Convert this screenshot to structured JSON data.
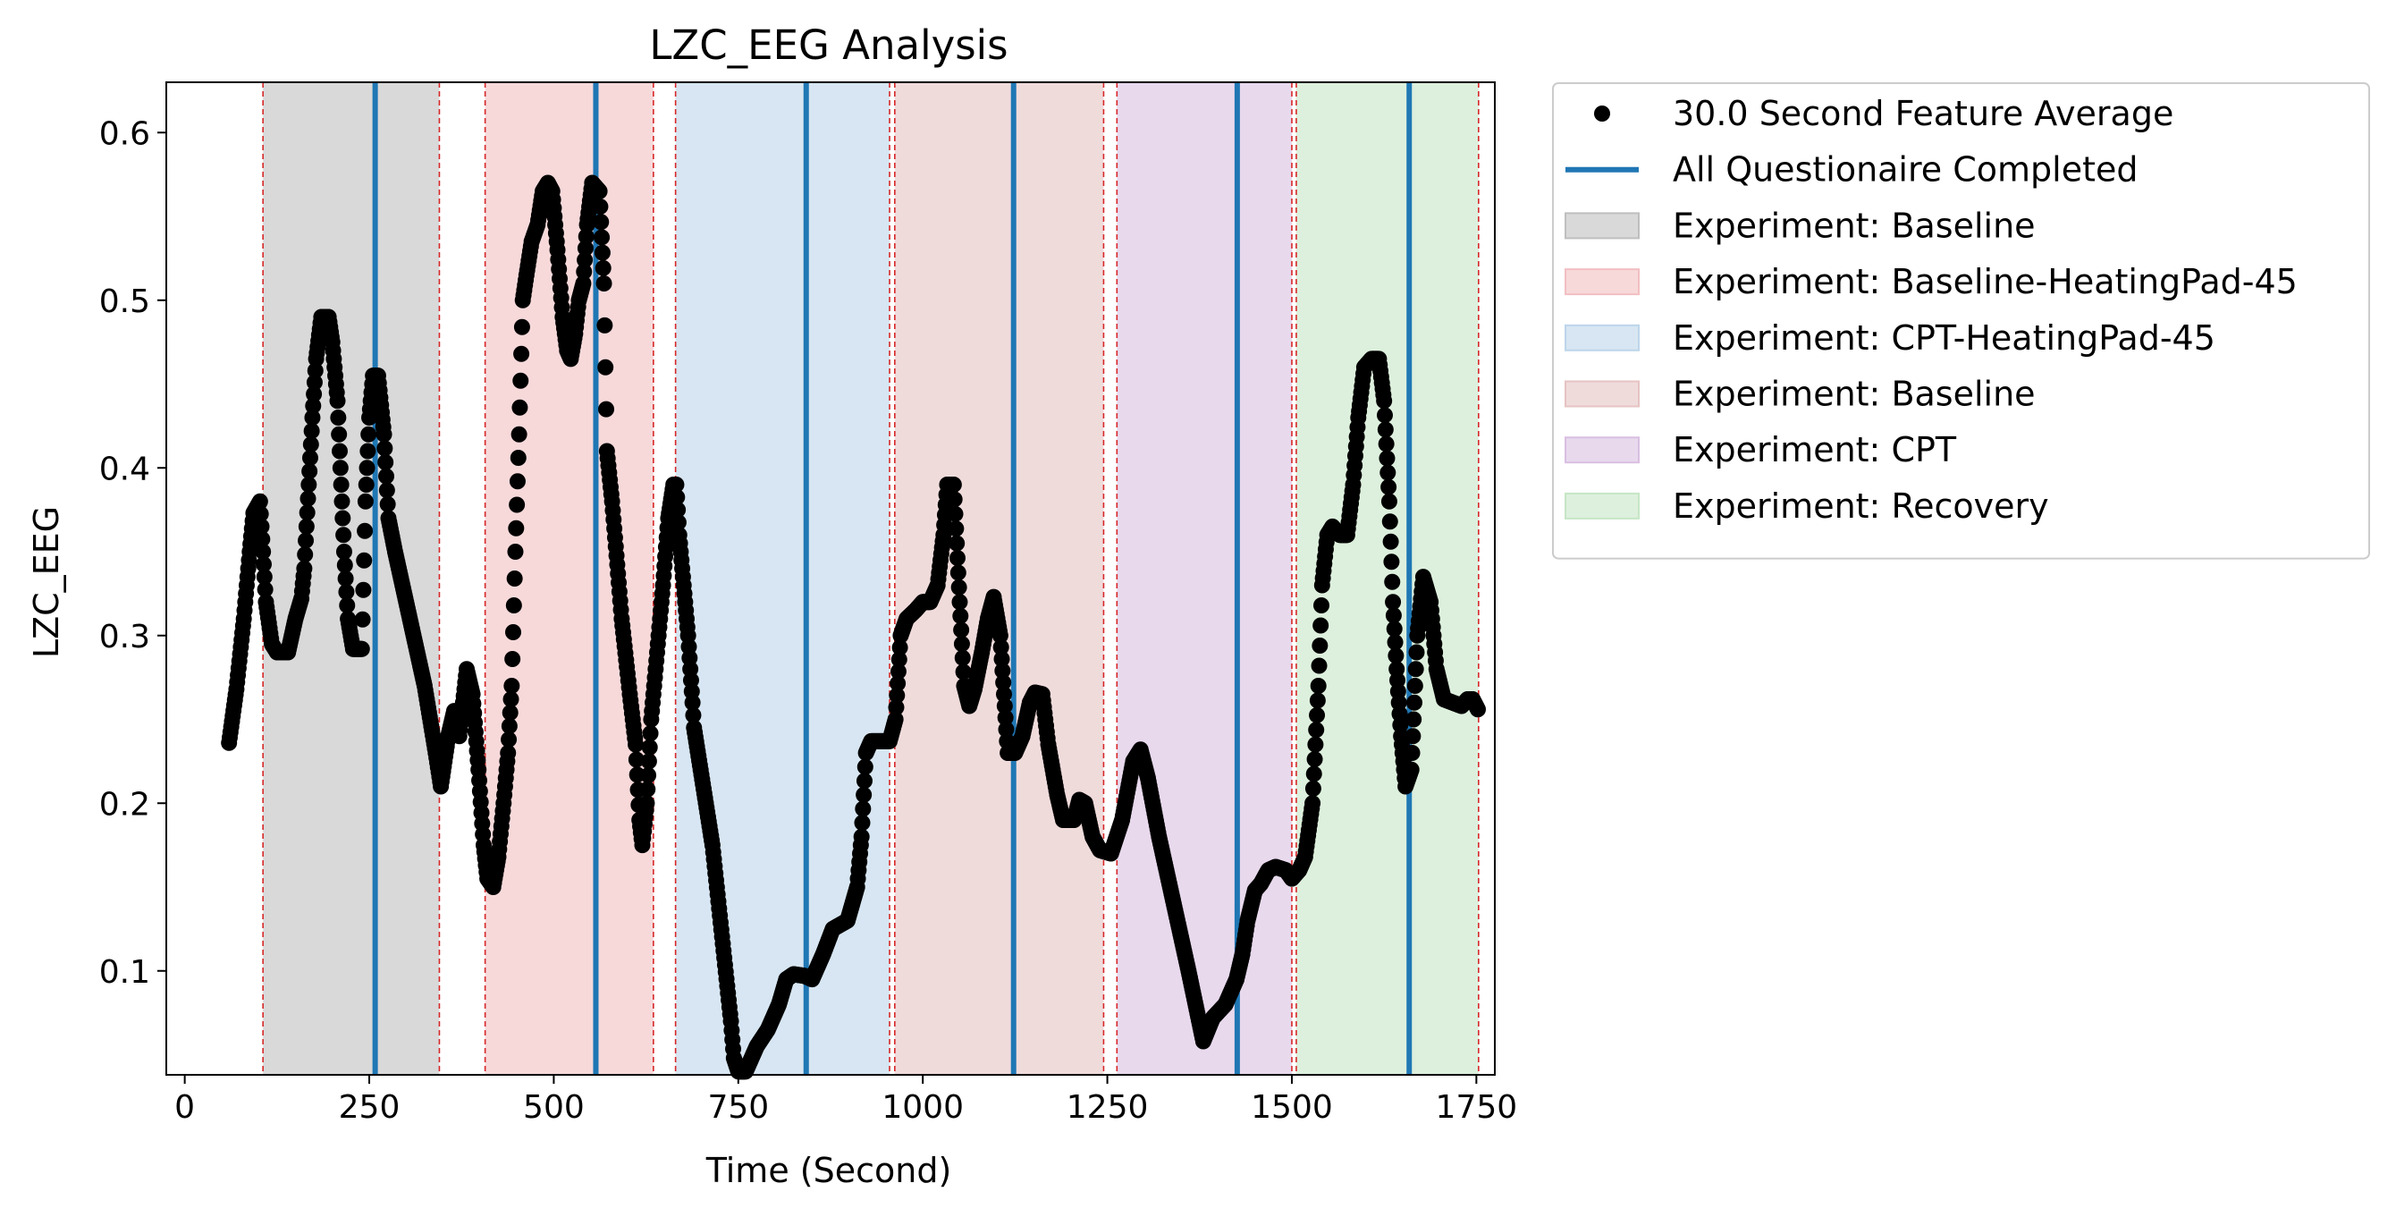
{
  "chart_data": {
    "type": "scatter",
    "title": "LZC_EEG Analysis",
    "xlabel": "Time (Second)",
    "ylabel": "LZC_EEG",
    "xlim": [
      -25,
      1775
    ],
    "ylim": [
      0.038,
      0.63
    ],
    "xticks": [
      0,
      250,
      500,
      750,
      1000,
      1250,
      1500,
      1750
    ],
    "yticks": [
      0.1,
      0.2,
      0.3,
      0.4,
      0.5,
      0.6
    ],
    "legend_position": "outside right, top",
    "series": [
      {
        "name": "30.0 Second Feature Average",
        "color": "#000000",
        "x_range": [
          60,
          1752
        ],
        "anchors": [
          [
            60,
            0.236
          ],
          [
            70,
            0.268
          ],
          [
            80,
            0.31
          ],
          [
            88,
            0.35
          ],
          [
            93,
            0.373
          ],
          [
            102,
            0.38
          ],
          [
            110,
            0.32
          ],
          [
            118,
            0.295
          ],
          [
            125,
            0.29
          ],
          [
            140,
            0.29
          ],
          [
            150,
            0.31
          ],
          [
            158,
            0.322
          ],
          [
            162,
            0.34
          ],
          [
            168,
            0.39
          ],
          [
            173,
            0.43
          ],
          [
            178,
            0.465
          ],
          [
            185,
            0.49
          ],
          [
            195,
            0.49
          ],
          [
            200,
            0.475
          ],
          [
            207,
            0.44
          ],
          [
            212,
            0.39
          ],
          [
            216,
            0.35
          ],
          [
            221,
            0.31
          ],
          [
            228,
            0.292
          ],
          [
            240,
            0.292
          ],
          [
            245,
            0.38
          ],
          [
            250,
            0.43
          ],
          [
            255,
            0.455
          ],
          [
            262,
            0.455
          ],
          [
            270,
            0.42
          ],
          [
            276,
            0.37
          ],
          [
            285,
            0.35
          ],
          [
            310,
            0.3
          ],
          [
            325,
            0.27
          ],
          [
            340,
            0.23
          ],
          [
            347,
            0.21
          ],
          [
            357,
            0.24
          ],
          [
            365,
            0.255
          ],
          [
            372,
            0.24
          ],
          [
            382,
            0.28
          ],
          [
            390,
            0.265
          ],
          [
            398,
            0.22
          ],
          [
            405,
            0.175
          ],
          [
            410,
            0.155
          ],
          [
            418,
            0.15
          ],
          [
            425,
            0.168
          ],
          [
            432,
            0.2
          ],
          [
            438,
            0.23
          ],
          [
            443,
            0.27
          ],
          [
            448,
            0.35
          ],
          [
            453,
            0.42
          ],
          [
            458,
            0.5
          ],
          [
            463,
            0.515
          ],
          [
            470,
            0.535
          ],
          [
            478,
            0.545
          ],
          [
            485,
            0.565
          ],
          [
            492,
            0.57
          ],
          [
            498,
            0.565
          ],
          [
            505,
            0.53
          ],
          [
            512,
            0.49
          ],
          [
            518,
            0.47
          ],
          [
            523,
            0.465
          ],
          [
            529,
            0.48
          ],
          [
            534,
            0.5
          ],
          [
            540,
            0.51
          ],
          [
            545,
            0.545
          ],
          [
            552,
            0.57
          ],
          [
            562,
            0.565
          ],
          [
            568,
            0.51
          ],
          [
            572,
            0.41
          ],
          [
            579,
            0.38
          ],
          [
            592,
            0.31
          ],
          [
            603,
            0.265
          ],
          [
            611,
            0.235
          ],
          [
            616,
            0.19
          ],
          [
            620,
            0.175
          ],
          [
            626,
            0.2
          ],
          [
            632,
            0.25
          ],
          [
            640,
            0.29
          ],
          [
            648,
            0.33
          ],
          [
            655,
            0.37
          ],
          [
            662,
            0.39
          ],
          [
            666,
            0.39
          ],
          [
            670,
            0.36
          ],
          [
            676,
            0.33
          ],
          [
            682,
            0.3
          ],
          [
            688,
            0.26
          ],
          [
            690,
            0.245
          ],
          [
            715,
            0.175
          ],
          [
            740,
            0.07
          ],
          [
            744,
            0.048
          ],
          [
            750,
            0.04
          ],
          [
            760,
            0.04
          ],
          [
            775,
            0.055
          ],
          [
            790,
            0.065
          ],
          [
            805,
            0.08
          ],
          [
            815,
            0.095
          ],
          [
            825,
            0.098
          ],
          [
            840,
            0.097
          ],
          [
            850,
            0.095
          ],
          [
            865,
            0.11
          ],
          [
            878,
            0.125
          ],
          [
            898,
            0.13
          ],
          [
            911,
            0.15
          ],
          [
            917,
            0.18
          ],
          [
            923,
            0.23
          ],
          [
            930,
            0.237
          ],
          [
            955,
            0.237
          ],
          [
            963,
            0.25
          ],
          [
            970,
            0.3
          ],
          [
            978,
            0.31
          ],
          [
            990,
            0.315
          ],
          [
            1000,
            0.32
          ],
          [
            1010,
            0.32
          ],
          [
            1020,
            0.33
          ],
          [
            1028,
            0.36
          ],
          [
            1033,
            0.39
          ],
          [
            1042,
            0.39
          ],
          [
            1050,
            0.32
          ],
          [
            1056,
            0.27
          ],
          [
            1063,
            0.258
          ],
          [
            1070,
            0.268
          ],
          [
            1080,
            0.29
          ],
          [
            1088,
            0.31
          ],
          [
            1096,
            0.323
          ],
          [
            1105,
            0.3
          ],
          [
            1115,
            0.23
          ],
          [
            1125,
            0.23
          ],
          [
            1135,
            0.24
          ],
          [
            1145,
            0.26
          ],
          [
            1152,
            0.266
          ],
          [
            1162,
            0.265
          ],
          [
            1170,
            0.235
          ],
          [
            1182,
            0.205
          ],
          [
            1190,
            0.19
          ],
          [
            1205,
            0.19
          ],
          [
            1212,
            0.202
          ],
          [
            1220,
            0.2
          ],
          [
            1230,
            0.18
          ],
          [
            1240,
            0.172
          ],
          [
            1255,
            0.17
          ],
          [
            1270,
            0.19
          ],
          [
            1285,
            0.225
          ],
          [
            1295,
            0.232
          ],
          [
            1305,
            0.215
          ],
          [
            1320,
            0.18
          ],
          [
            1360,
            0.1
          ],
          [
            1380,
            0.058
          ],
          [
            1393,
            0.072
          ],
          [
            1410,
            0.08
          ],
          [
            1425,
            0.095
          ],
          [
            1433,
            0.11
          ],
          [
            1440,
            0.13
          ],
          [
            1450,
            0.148
          ],
          [
            1458,
            0.152
          ],
          [
            1468,
            0.16
          ],
          [
            1478,
            0.162
          ],
          [
            1492,
            0.16
          ],
          [
            1500,
            0.155
          ],
          [
            1510,
            0.16
          ],
          [
            1518,
            0.168
          ],
          [
            1528,
            0.2
          ],
          [
            1536,
            0.27
          ],
          [
            1541,
            0.33
          ],
          [
            1548,
            0.36
          ],
          [
            1555,
            0.365
          ],
          [
            1565,
            0.36
          ],
          [
            1575,
            0.36
          ],
          [
            1583,
            0.39
          ],
          [
            1590,
            0.43
          ],
          [
            1598,
            0.46
          ],
          [
            1608,
            0.465
          ],
          [
            1618,
            0.465
          ],
          [
            1625,
            0.44
          ],
          [
            1632,
            0.38
          ],
          [
            1637,
            0.32
          ],
          [
            1642,
            0.28
          ],
          [
            1648,
            0.24
          ],
          [
            1654,
            0.21
          ],
          [
            1662,
            0.22
          ],
          [
            1670,
            0.3
          ],
          [
            1678,
            0.335
          ],
          [
            1688,
            0.32
          ],
          [
            1696,
            0.28
          ],
          [
            1706,
            0.262
          ],
          [
            1730,
            0.258
          ],
          [
            1738,
            0.262
          ],
          [
            1745,
            0.262
          ],
          [
            1752,
            0.256
          ]
        ]
      }
    ],
    "vlines": {
      "name": "All Questionaire Completed",
      "color": "#1f77b4",
      "x": [
        258,
        557,
        842,
        1123,
        1426,
        1659
      ]
    },
    "spans": [
      {
        "name": "Experiment: Baseline",
        "color": "#bfbfbf",
        "x0": 106,
        "x1": 345
      },
      {
        "name": "Experiment: Baseline-HeatingPad-45",
        "color": "#f2bfc2",
        "x0": 407,
        "x1": 635
      },
      {
        "name": "Experiment: CPT-HeatingPad-45",
        "color": "#bdd5ea",
        "x0": 665,
        "x1": 955
      },
      {
        "name": "Experiment: Baseline",
        "color": "#e6c3c3",
        "x0": 962,
        "x1": 1245
      },
      {
        "name": "Experiment: CPT",
        "color": "#d9bfe1",
        "x0": 1263,
        "x1": 1500
      },
      {
        "name": "Experiment: Recovery",
        "color": "#c6e6c6",
        "x0": 1506,
        "x1": 1753
      }
    ],
    "span_boundaries": [
      106,
      345,
      407,
      635,
      665,
      955,
      962,
      1245,
      1263,
      1500,
      1506,
      1753
    ],
    "legend": [
      {
        "label": "30.0 Second Feature Average",
        "kind": "marker",
        "color": "#000000"
      },
      {
        "label": "All Questionaire Completed",
        "kind": "line",
        "color": "#1f77b4"
      },
      {
        "label": "Experiment: Baseline",
        "kind": "patch",
        "color": "#bfbfbf"
      },
      {
        "label": "Experiment: Baseline-HeatingPad-45",
        "kind": "patch",
        "color": "#f2bfc2"
      },
      {
        "label": "Experiment: CPT-HeatingPad-45",
        "kind": "patch",
        "color": "#bdd5ea"
      },
      {
        "label": "Experiment: Baseline",
        "kind": "patch",
        "color": "#e6c3c3"
      },
      {
        "label": "Experiment: CPT",
        "kind": "patch",
        "color": "#d9bfe1"
      },
      {
        "label": "Experiment: Recovery",
        "kind": "patch",
        "color": "#c6e6c6"
      }
    ]
  }
}
